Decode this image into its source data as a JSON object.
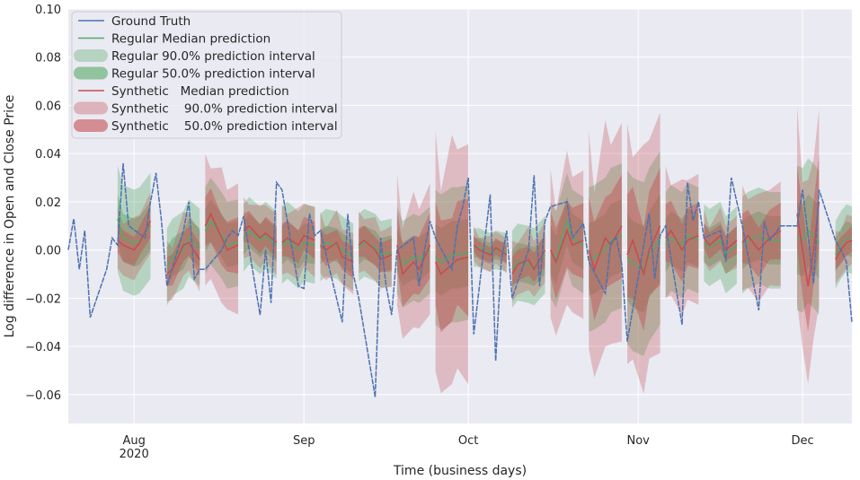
{
  "chart_data": {
    "type": "line",
    "title": "",
    "xlabel": "Time (business days)",
    "ylabel": "Log difference in Open and Close Price",
    "ylim": [
      -0.072,
      0.1
    ],
    "ytick_values": [
      -0.06,
      -0.04,
      -0.02,
      0.0,
      0.02,
      0.04,
      0.06,
      0.08,
      0.1
    ],
    "ytick_labels": [
      "−0.06",
      "−0.04",
      "−0.02",
      "0.00",
      "0.02",
      "0.04",
      "0.06",
      "0.08",
      "0.10"
    ],
    "x_start": "2020-07-20",
    "x_end": "2020-12-10",
    "xticks": [
      {
        "date": "2020-08-01",
        "label": "Aug",
        "sublabel": "2020"
      },
      {
        "date": "2020-09-01",
        "label": "Sep",
        "sublabel": ""
      },
      {
        "date": "2020-10-01",
        "label": "Oct",
        "sublabel": ""
      },
      {
        "date": "2020-11-01",
        "label": "Nov",
        "sublabel": ""
      },
      {
        "date": "2020-12-01",
        "label": "Dec",
        "sublabel": ""
      }
    ],
    "grid": true,
    "legend_position": "top-left",
    "colors": {
      "background": "#eaeaf2",
      "ground_truth": "#4c72b0",
      "regular": "#55a868",
      "synthetic": "#c44e52",
      "grid": "#ffffff"
    },
    "legend": [
      {
        "label": "Ground Truth",
        "kind": "line",
        "series": "ground_truth"
      },
      {
        "label": "Regular Median prediction",
        "kind": "line",
        "series": "regular"
      },
      {
        "label": "Regular 90.0% prediction interval",
        "kind": "band90",
        "series": "regular"
      },
      {
        "label": "Regular 50.0% prediction interval",
        "kind": "band50",
        "series": "regular"
      },
      {
        "label": "Synthetic   Median prediction",
        "kind": "line",
        "series": "synthetic"
      },
      {
        "label": "Synthetic    90.0% prediction interval",
        "kind": "band90",
        "series": "synthetic"
      },
      {
        "label": "Synthetic    50.0% prediction interval",
        "kind": "band50",
        "series": "synthetic"
      }
    ],
    "ground_truth": {
      "name": "Ground Truth",
      "x": [
        "2020-07-20",
        "2020-07-21",
        "2020-07-22",
        "2020-07-23",
        "2020-07-24",
        "2020-07-27",
        "2020-07-28",
        "2020-07-29",
        "2020-07-30",
        "2020-07-31",
        "2020-08-03",
        "2020-08-04",
        "2020-08-05",
        "2020-08-06",
        "2020-08-07",
        "2020-08-10",
        "2020-08-11",
        "2020-08-12",
        "2020-08-13",
        "2020-08-14",
        "2020-08-17",
        "2020-08-18",
        "2020-08-19",
        "2020-08-20",
        "2020-08-21",
        "2020-08-24",
        "2020-08-25",
        "2020-08-26",
        "2020-08-27",
        "2020-08-28",
        "2020-08-31",
        "2020-09-01",
        "2020-09-02",
        "2020-09-03",
        "2020-09-04",
        "2020-09-08",
        "2020-09-09",
        "2020-09-10",
        "2020-09-11",
        "2020-09-14",
        "2020-09-15",
        "2020-09-16",
        "2020-09-17",
        "2020-09-18",
        "2020-09-21",
        "2020-09-22",
        "2020-09-23",
        "2020-09-24",
        "2020-09-25",
        "2020-09-28",
        "2020-09-29",
        "2020-09-30",
        "2020-10-01",
        "2020-10-02",
        "2020-10-05",
        "2020-10-06",
        "2020-10-07",
        "2020-10-08",
        "2020-10-09",
        "2020-10-12",
        "2020-10-13",
        "2020-10-14",
        "2020-10-15",
        "2020-10-16",
        "2020-10-19",
        "2020-10-20",
        "2020-10-21",
        "2020-10-22",
        "2020-10-23",
        "2020-10-26",
        "2020-10-27",
        "2020-10-28",
        "2020-10-29",
        "2020-10-30",
        "2020-11-02",
        "2020-11-03",
        "2020-11-04",
        "2020-11-05",
        "2020-11-06",
        "2020-11-09",
        "2020-11-10",
        "2020-11-11",
        "2020-11-12",
        "2020-11-13",
        "2020-11-16",
        "2020-11-17",
        "2020-11-18",
        "2020-11-19",
        "2020-11-20",
        "2020-11-23",
        "2020-11-24",
        "2020-11-25",
        "2020-11-27",
        "2020-11-30",
        "2020-12-01",
        "2020-12-02",
        "2020-12-03",
        "2020-12-04",
        "2020-12-07",
        "2020-12-08",
        "2020-12-09",
        "2020-12-10"
      ],
      "values": [
        0.0,
        0.013,
        -0.008,
        0.008,
        -0.028,
        -0.008,
        0.005,
        0.002,
        0.036,
        0.01,
        0.005,
        0.02,
        0.032,
        0.012,
        -0.015,
        0.008,
        0.02,
        -0.012,
        -0.008,
        -0.008,
        0.0,
        0.005,
        0.008,
        0.006,
        0.014,
        -0.027,
        0.0,
        -0.022,
        0.028,
        0.025,
        -0.015,
        -0.016,
        0.015,
        0.006,
        0.008,
        -0.03,
        0.015,
        -0.01,
        -0.02,
        -0.061,
        0.005,
        -0.015,
        -0.027,
        0.0,
        0.005,
        -0.015,
        0.0,
        0.012,
        0.005,
        -0.008,
        0.01,
        0.018,
        0.03,
        -0.035,
        0.023,
        -0.046,
        -0.005,
        0.008,
        -0.02,
        0.0,
        0.031,
        -0.015,
        0.012,
        0.018,
        0.02,
        0.005,
        0.008,
        0.011,
        -0.005,
        -0.018,
        0.003,
        0.005,
        -0.006,
        -0.038,
        0.002,
        0.015,
        -0.012,
        0.006,
        0.01,
        -0.031,
        0.028,
        0.012,
        0.02,
        0.005,
        0.008,
        -0.005,
        0.03,
        0.02,
        0.01,
        -0.025,
        0.012,
        0.004,
        0.01,
        0.01,
        0.025,
        0.006,
        -0.014,
        0.025,
        0.004,
        0.0,
        -0.005,
        -0.03
      ]
    },
    "windows": [
      {
        "start": "2020-07-29",
        "end": "2020-08-04",
        "med": [
          0.004,
          0.002,
          0.0,
          0.003,
          0.012
        ],
        "reg_median": [
          0.013,
          0.005,
          0.003,
          0.004,
          0.01
        ],
        "reg90": 0.022,
        "reg50": 0.01,
        "syn90": 0.014,
        "syn50": 0.007
      },
      {
        "start": "2020-08-07",
        "end": "2020-08-13",
        "med": [
          -0.01,
          -0.008,
          0.002,
          0.003,
          -0.004
        ],
        "reg_median": [
          -0.007,
          -0.003,
          0.0,
          0.005,
          0.001
        ],
        "reg90": 0.016,
        "reg50": 0.008,
        "syn90": 0.014,
        "syn50": 0.007
      },
      {
        "start": "2020-08-14",
        "end": "2020-08-20",
        "med": [
          0.01,
          0.015,
          0.005,
          0.0,
          0.002
        ],
        "reg_median": [
          0.008,
          0.012,
          0.006,
          0.002,
          0.003
        ],
        "reg90": 0.018,
        "reg50": 0.009,
        "syn90": 0.03,
        "syn50": 0.012
      },
      {
        "start": "2020-08-21",
        "end": "2020-08-27",
        "med": [
          0.008,
          0.01,
          0.005,
          0.007,
          0.003
        ],
        "reg_median": [
          0.005,
          0.008,
          0.004,
          0.006,
          0.002
        ],
        "reg90": 0.014,
        "reg50": 0.007,
        "syn90": 0.014,
        "syn50": 0.007
      },
      {
        "start": "2020-08-28",
        "end": "2020-09-03",
        "med": [
          0.003,
          0.005,
          0.002,
          0.006,
          0.004
        ],
        "reg_median": [
          0.002,
          0.004,
          0.0,
          0.003,
          0.002
        ],
        "reg90": 0.016,
        "reg50": 0.008,
        "syn90": 0.016,
        "syn50": 0.008
      },
      {
        "start": "2020-09-04",
        "end": "2020-09-10",
        "med": [
          0.002,
          0.0,
          0.003,
          -0.003,
          -0.005
        ],
        "reg_median": [
          0.001,
          0.003,
          0.002,
          0.0,
          -0.003
        ],
        "reg90": 0.014,
        "reg50": 0.007,
        "syn90": 0.014,
        "syn50": 0.007
      },
      {
        "start": "2020-09-11",
        "end": "2020-09-17",
        "med": [
          0.002,
          0.004,
          0.0,
          -0.004,
          -0.002
        ],
        "reg_median": [
          0.001,
          0.003,
          0.001,
          -0.002,
          -0.001
        ],
        "reg90": 0.014,
        "reg50": 0.007,
        "syn90": 0.014,
        "syn50": 0.007
      },
      {
        "start": "2020-09-18",
        "end": "2020-09-24",
        "med": [
          0.002,
          -0.01,
          -0.005,
          -0.008,
          0.002
        ],
        "reg_median": [
          0.0,
          -0.006,
          -0.003,
          -0.004,
          0.0
        ],
        "reg90": 0.018,
        "reg50": 0.009,
        "syn90": 0.03,
        "syn50": 0.014
      },
      {
        "start": "2020-09-25",
        "end": "2020-10-01",
        "med": [
          -0.005,
          -0.01,
          -0.006,
          -0.004,
          -0.003
        ],
        "reg_median": [
          -0.003,
          -0.005,
          -0.002,
          -0.002,
          -0.001
        ],
        "reg90": 0.028,
        "reg50": 0.014,
        "syn90": 0.055,
        "syn50": 0.025
      },
      {
        "start": "2020-10-02",
        "end": "2020-10-08",
        "med": [
          0.002,
          0.0,
          -0.002,
          0.001,
          -0.002
        ],
        "reg_median": [
          0.001,
          0.001,
          -0.001,
          0.0,
          -0.001
        ],
        "reg90": 0.008,
        "reg50": 0.004,
        "syn90": 0.008,
        "syn50": 0.004
      },
      {
        "start": "2020-10-09",
        "end": "2020-10-15",
        "med": [
          -0.01,
          -0.006,
          -0.004,
          -0.008,
          0.0
        ],
        "reg_median": [
          -0.008,
          -0.005,
          -0.006,
          -0.007,
          -0.002
        ],
        "reg90": 0.016,
        "reg50": 0.008,
        "syn90": 0.014,
        "syn50": 0.007
      },
      {
        "start": "2020-10-16",
        "end": "2020-10-22",
        "med": [
          0.0,
          -0.005,
          0.008,
          0.002,
          0.004
        ],
        "reg_median": [
          0.0,
          -0.004,
          0.012,
          0.005,
          0.002
        ],
        "reg90": 0.02,
        "reg50": 0.01,
        "syn90": 0.034,
        "syn50": 0.016
      },
      {
        "start": "2020-10-23",
        "end": "2020-10-29",
        "med": [
          0.0,
          -0.008,
          0.005,
          0.002,
          0.01
        ],
        "reg_median": [
          -0.004,
          -0.003,
          0.0,
          0.004,
          0.006
        ],
        "reg90": 0.03,
        "reg50": 0.015,
        "syn90": 0.05,
        "syn50": 0.022
      },
      {
        "start": "2020-10-30",
        "end": "2020-11-05",
        "med": [
          -0.002,
          0.004,
          -0.01,
          0.0,
          0.01
        ],
        "reg_median": [
          -0.003,
          -0.006,
          -0.008,
          -0.002,
          0.005
        ],
        "reg90": 0.036,
        "reg50": 0.018,
        "syn90": 0.055,
        "syn50": 0.025
      },
      {
        "start": "2020-11-06",
        "end": "2020-11-12",
        "med": [
          0.005,
          0.008,
          0.0,
          0.004,
          0.006
        ],
        "reg_median": [
          0.002,
          0.005,
          0.002,
          0.006,
          0.004
        ],
        "reg90": 0.022,
        "reg50": 0.011,
        "syn90": 0.03,
        "syn50": 0.014
      },
      {
        "start": "2020-11-13",
        "end": "2020-11-19",
        "med": [
          0.005,
          0.002,
          0.006,
          0.0,
          0.004
        ],
        "reg_median": [
          0.003,
          0.001,
          0.004,
          -0.002,
          0.002
        ],
        "reg90": 0.016,
        "reg50": 0.008,
        "syn90": 0.012,
        "syn50": 0.006
      },
      {
        "start": "2020-11-20",
        "end": "2020-11-27",
        "med": [
          0.003,
          0.006,
          0.0,
          0.005,
          0.008
        ],
        "reg_median": [
          0.002,
          0.004,
          0.006,
          0.004,
          0.004
        ],
        "reg90": 0.02,
        "reg50": 0.01,
        "syn90": 0.024,
        "syn50": 0.012
      },
      {
        "start": "2020-11-30",
        "end": "2020-12-04",
        "med": [
          0.015,
          0.0,
          -0.015,
          0.0,
          0.02
        ],
        "reg_median": [
          0.005,
          0.004,
          0.008,
          0.006,
          0.003
        ],
        "reg90": 0.03,
        "reg50": 0.015,
        "syn90": 0.045,
        "syn50": 0.02
      },
      {
        "start": "2020-12-07",
        "end": "2020-12-10",
        "med": [
          -0.004,
          0.0,
          0.003,
          0.004
        ],
        "reg_median": [
          -0.002,
          0.002,
          0.005,
          0.004
        ],
        "reg90": 0.014,
        "reg50": 0.007,
        "syn90": 0.012,
        "syn50": 0.006
      }
    ]
  }
}
